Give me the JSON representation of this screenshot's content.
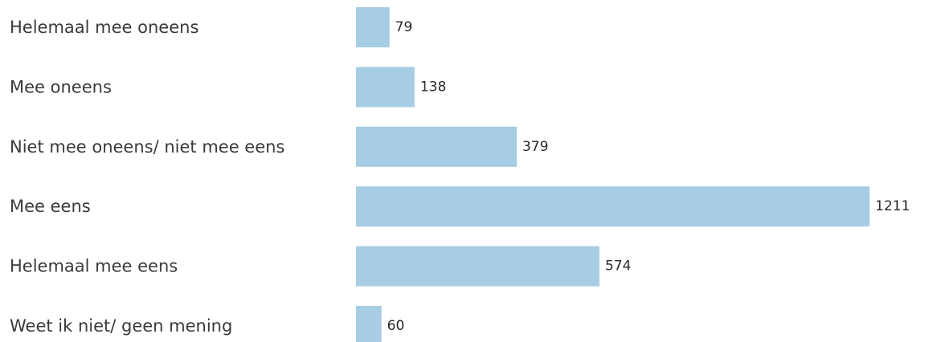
{
  "chart_data": {
    "type": "bar",
    "orientation": "horizontal",
    "categories": [
      "Helemaal mee oneens",
      "Mee oneens",
      "Niet mee oneens/ niet mee eens",
      "Mee eens",
      "Helemaal mee eens",
      "Weet ik niet/ geen mening"
    ],
    "values": [
      79,
      138,
      379,
      1211,
      574,
      60
    ],
    "title": "",
    "xlabel": "",
    "ylabel": "",
    "xlim": [
      0,
      1211
    ],
    "grid": false,
    "legend": "none",
    "bar_color": "#a6cde3"
  }
}
